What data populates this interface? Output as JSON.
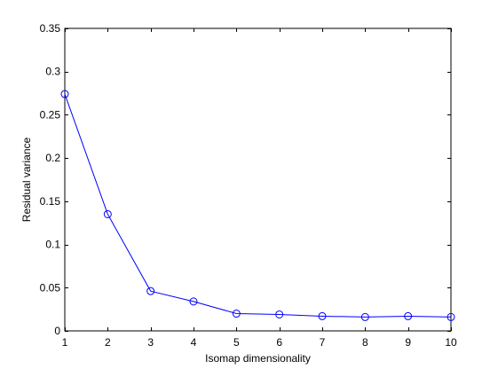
{
  "chart_data": {
    "type": "line",
    "title": "",
    "xlabel": "Isomap dimensionality",
    "ylabel": "Residual variance",
    "xlim": [
      1,
      10
    ],
    "ylim": [
      0,
      0.35
    ],
    "xticks": [
      1,
      2,
      3,
      4,
      5,
      6,
      7,
      8,
      9,
      10
    ],
    "yticks": [
      0,
      0.05,
      0.1,
      0.15,
      0.2,
      0.25,
      0.3,
      0.35
    ],
    "xtick_labels": [
      "1",
      "2",
      "3",
      "4",
      "5",
      "6",
      "7",
      "8",
      "9",
      "10"
    ],
    "ytick_labels": [
      "0",
      "0.05",
      "0.1",
      "0.15",
      "0.2",
      "0.25",
      "0.3",
      "0.35"
    ],
    "grid": false,
    "legend": "none",
    "series": [
      {
        "color": "#0000ff",
        "marker": "circle",
        "x": [
          1,
          2,
          3,
          4,
          5,
          6,
          7,
          8,
          9,
          10
        ],
        "y": [
          0.274,
          0.135,
          0.046,
          0.034,
          0.02,
          0.019,
          0.017,
          0.016,
          0.017,
          0.016
        ]
      }
    ]
  }
}
